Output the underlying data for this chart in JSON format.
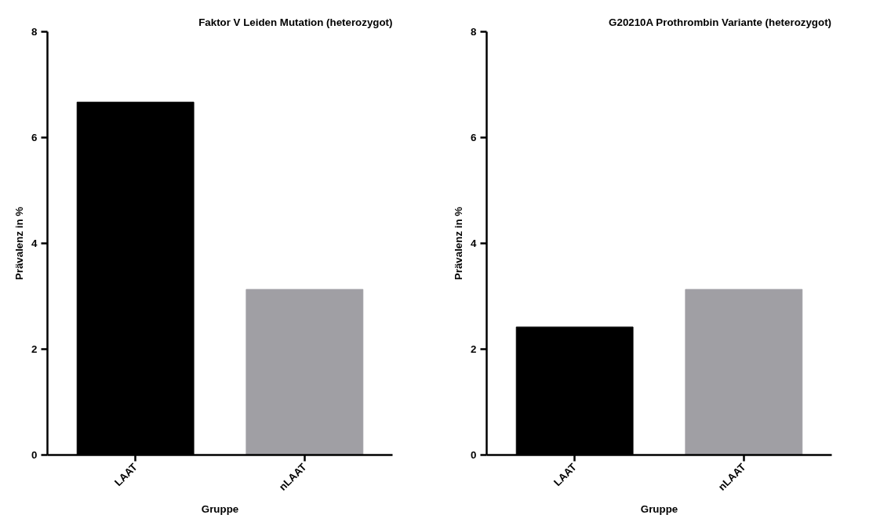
{
  "chart_data": [
    {
      "type": "bar",
      "title": "Faktor V Leiden Mutation (heterozygot)",
      "xlabel": "Gruppe",
      "ylabel": "Prävalenz in %",
      "categories": [
        "LAAT",
        "nLAAT"
      ],
      "values": [
        6.67,
        3.13
      ],
      "colors": [
        "#000000",
        "#a09fa4"
      ],
      "ylim": [
        0,
        8
      ],
      "yticks": [
        0,
        2,
        4,
        6,
        8
      ],
      "grid": false
    },
    {
      "type": "bar",
      "title": "G20210A Prothrombin Variante (heterozygot)",
      "xlabel": "Gruppe",
      "ylabel": "Prävalenz in %",
      "categories": [
        "LAAT",
        "nLAAT"
      ],
      "values": [
        2.42,
        3.13
      ],
      "colors": [
        "#000000",
        "#a09fa4"
      ],
      "ylim": [
        0,
        8
      ],
      "yticks": [
        0,
        2,
        4,
        6,
        8
      ],
      "grid": false
    }
  ]
}
